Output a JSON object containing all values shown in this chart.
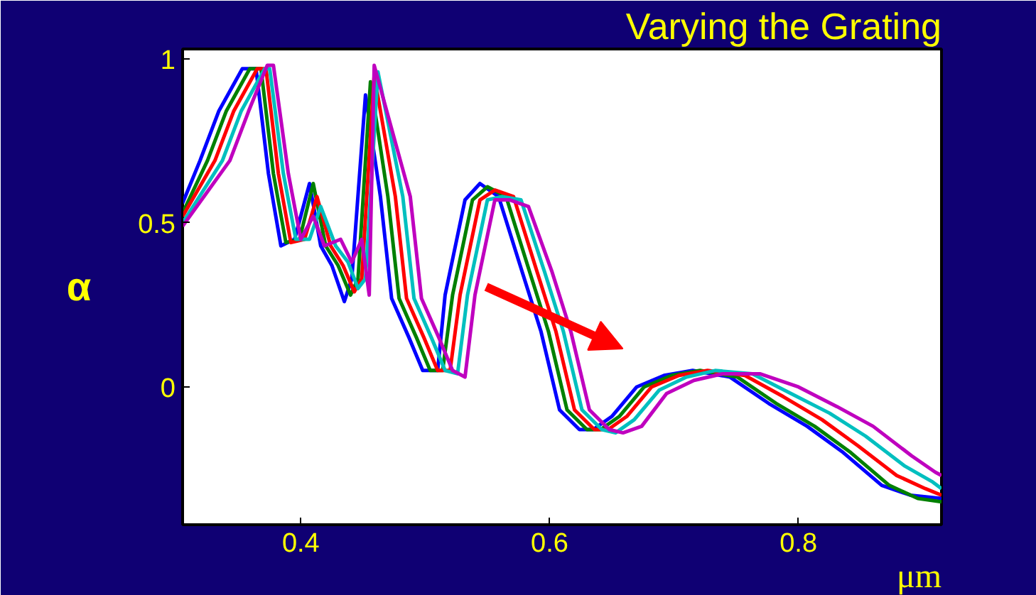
{
  "chart_data": {
    "type": "line",
    "title": "Varying the Grating",
    "xlabel": "μm",
    "ylabel": "α",
    "xlim": [
      0.305,
      0.915
    ],
    "ylim": [
      -0.42,
      1.03
    ],
    "xticks": [
      0.4,
      0.6,
      0.8
    ],
    "yticks": [
      0,
      0.5,
      1
    ],
    "grid": false,
    "line_style": "solid",
    "marker": "none",
    "series": [
      {
        "color": "#0000ff",
        "x": [
          0.305,
          0.319,
          0.334,
          0.353,
          0.364,
          0.374,
          0.384,
          0.395,
          0.407,
          0.416,
          0.425,
          0.435,
          0.441,
          0.452,
          0.464,
          0.473,
          0.487,
          0.498,
          0.51,
          0.516,
          0.532,
          0.544,
          0.559,
          0.578,
          0.593,
          0.608,
          0.624,
          0.635,
          0.65,
          0.67,
          0.692,
          0.715,
          0.745,
          0.776,
          0.807,
          0.836,
          0.867,
          0.89,
          0.915
        ],
        "values": [
          0.56,
          0.69,
          0.84,
          0.97,
          0.97,
          0.65,
          0.43,
          0.45,
          0.62,
          0.43,
          0.37,
          0.26,
          0.33,
          0.89,
          0.58,
          0.27,
          0.15,
          0.05,
          0.05,
          0.28,
          0.57,
          0.62,
          0.58,
          0.35,
          0.17,
          -0.07,
          -0.13,
          -0.13,
          -0.09,
          0.0,
          0.035,
          0.05,
          0.03,
          -0.05,
          -0.12,
          -0.2,
          -0.3,
          -0.33,
          -0.34
        ]
      },
      {
        "color": "#008000",
        "x": [
          0.305,
          0.325,
          0.34,
          0.359,
          0.368,
          0.378,
          0.388,
          0.399,
          0.41,
          0.42,
          0.43,
          0.44,
          0.446,
          0.456,
          0.47,
          0.479,
          0.493,
          0.504,
          0.514,
          0.522,
          0.538,
          0.55,
          0.565,
          0.584,
          0.599,
          0.614,
          0.63,
          0.641,
          0.656,
          0.676,
          0.698,
          0.721,
          0.751,
          0.782,
          0.813,
          0.842,
          0.873,
          0.896,
          0.915
        ],
        "values": [
          0.53,
          0.69,
          0.84,
          0.97,
          0.97,
          0.65,
          0.44,
          0.45,
          0.62,
          0.43,
          0.37,
          0.28,
          0.33,
          0.93,
          0.58,
          0.27,
          0.15,
          0.05,
          0.05,
          0.28,
          0.57,
          0.61,
          0.58,
          0.35,
          0.17,
          -0.07,
          -0.13,
          -0.13,
          -0.09,
          0.0,
          0.035,
          0.05,
          0.03,
          -0.05,
          -0.12,
          -0.2,
          -0.3,
          -0.34,
          -0.35
        ]
      },
      {
        "color": "#ff0000",
        "x": [
          0.305,
          0.331,
          0.346,
          0.365,
          0.372,
          0.382,
          0.392,
          0.403,
          0.413,
          0.424,
          0.434,
          0.443,
          0.449,
          0.459,
          0.476,
          0.485,
          0.499,
          0.51,
          0.52,
          0.528,
          0.544,
          0.556,
          0.571,
          0.59,
          0.605,
          0.62,
          0.636,
          0.647,
          0.662,
          0.682,
          0.704,
          0.727,
          0.757,
          0.788,
          0.819,
          0.848,
          0.879,
          0.902,
          0.915
        ],
        "values": [
          0.52,
          0.69,
          0.84,
          0.97,
          0.97,
          0.65,
          0.44,
          0.45,
          0.58,
          0.43,
          0.37,
          0.29,
          0.33,
          0.95,
          0.58,
          0.27,
          0.15,
          0.05,
          0.05,
          0.28,
          0.57,
          0.6,
          0.58,
          0.35,
          0.17,
          -0.07,
          -0.13,
          -0.13,
          -0.09,
          0.0,
          0.035,
          0.05,
          0.035,
          -0.03,
          -0.1,
          -0.18,
          -0.27,
          -0.31,
          -0.33
        ]
      },
      {
        "color": "#00bfbf",
        "x": [
          0.305,
          0.337,
          0.352,
          0.371,
          0.375,
          0.386,
          0.396,
          0.407,
          0.416,
          0.428,
          0.438,
          0.446,
          0.452,
          0.462,
          0.482,
          0.491,
          0.505,
          0.516,
          0.526,
          0.534,
          0.55,
          0.562,
          0.577,
          0.596,
          0.611,
          0.626,
          0.642,
          0.653,
          0.668,
          0.688,
          0.71,
          0.733,
          0.763,
          0.794,
          0.825,
          0.854,
          0.885,
          0.908,
          0.915
        ],
        "values": [
          0.5,
          0.69,
          0.84,
          0.97,
          0.97,
          0.65,
          0.45,
          0.45,
          0.55,
          0.43,
          0.38,
          0.3,
          0.33,
          0.96,
          0.58,
          0.27,
          0.15,
          0.05,
          0.04,
          0.28,
          0.57,
          0.58,
          0.57,
          0.35,
          0.17,
          -0.07,
          -0.13,
          -0.14,
          -0.1,
          -0.01,
          0.03,
          0.05,
          0.04,
          -0.02,
          -0.08,
          -0.15,
          -0.24,
          -0.29,
          -0.31
        ]
      },
      {
        "color": "#bf00bf",
        "x": [
          0.305,
          0.343,
          0.358,
          0.373,
          0.378,
          0.39,
          0.4,
          0.41,
          0.419,
          0.432,
          0.441,
          0.449,
          0.455,
          0.459,
          0.488,
          0.497,
          0.511,
          0.522,
          0.532,
          0.54,
          0.556,
          0.568,
          0.583,
          0.602,
          0.617,
          0.632,
          0.648,
          0.659,
          0.674,
          0.694,
          0.716,
          0.739,
          0.769,
          0.8,
          0.831,
          0.86,
          0.891,
          0.91,
          0.915
        ],
        "values": [
          0.49,
          0.69,
          0.84,
          0.98,
          0.98,
          0.65,
          0.45,
          0.52,
          0.43,
          0.45,
          0.38,
          0.45,
          0.28,
          0.98,
          0.58,
          0.27,
          0.15,
          0.05,
          0.03,
          0.28,
          0.57,
          0.57,
          0.55,
          0.35,
          0.17,
          -0.07,
          -0.13,
          -0.14,
          -0.12,
          -0.02,
          0.02,
          0.04,
          0.04,
          0.0,
          -0.06,
          -0.12,
          -0.21,
          -0.26,
          -0.27
        ]
      }
    ]
  }
}
